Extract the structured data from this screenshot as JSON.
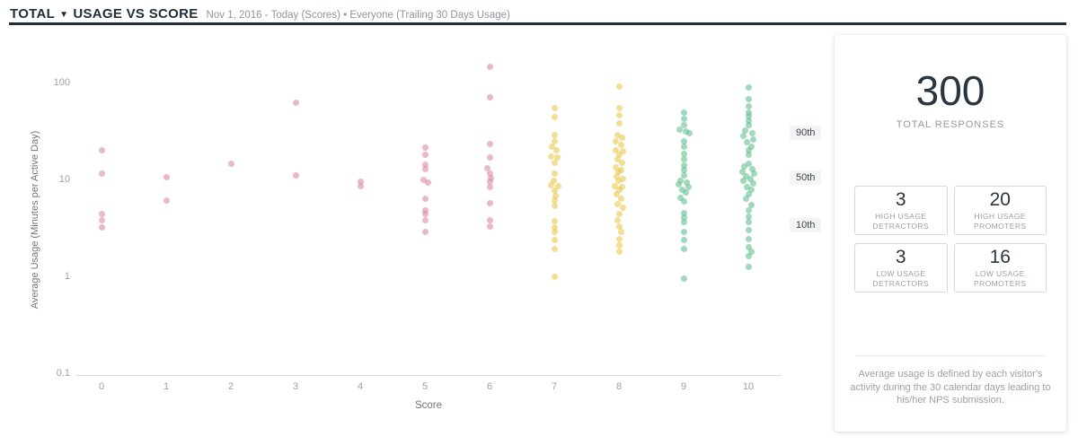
{
  "header": {
    "scope_label": "TOTAL",
    "title": "USAGE VS SCORE",
    "subtitle": "Nov 1, 2016 - Today (Scores) • Everyone (Trailing 30 Days Usage)"
  },
  "chart_data": {
    "type": "scatter",
    "title": "Usage vs Score",
    "xlabel": "Score",
    "ylabel": "Average Usage (Minutes per Active Day)",
    "x_ticks": [
      0,
      1,
      2,
      3,
      4,
      5,
      6,
      7,
      8,
      9,
      10
    ],
    "y_ticks": [
      100,
      10,
      1,
      0.1
    ],
    "y_scale": "log",
    "ylim": [
      0.1,
      200
    ],
    "grid": false,
    "colors": {
      "detractor": "#DB7E9F",
      "passive": "#E8C33C",
      "promoter": "#54BA87"
    },
    "groups": {
      "detractor_scores": [
        0,
        1,
        2,
        3,
        4,
        5,
        6
      ],
      "passive_scores": [
        7,
        8
      ],
      "promoter_scores": [
        9,
        10
      ]
    },
    "percentiles": [
      {
        "label": "90th",
        "value": 30.5
      },
      {
        "label": "50th",
        "value": 10.4
      },
      {
        "label": "10th",
        "value": 3.4
      }
    ],
    "points": [
      [
        0,
        20,
        0
      ],
      [
        0,
        11.5,
        0
      ],
      [
        0,
        4.4,
        0
      ],
      [
        0,
        3.8,
        0
      ],
      [
        0,
        3.2,
        0
      ],
      [
        1,
        10.5,
        0
      ],
      [
        1,
        6.1,
        0
      ],
      [
        2,
        14.5,
        0
      ],
      [
        3,
        62,
        0
      ],
      [
        3,
        11,
        0
      ],
      [
        4,
        9.4,
        0
      ],
      [
        4,
        8.6,
        0
      ],
      [
        5,
        21.5,
        0
      ],
      [
        5,
        17.8,
        0
      ],
      [
        5,
        14.3,
        0
      ],
      [
        5,
        12.9,
        0
      ],
      [
        5,
        9.8,
        -2
      ],
      [
        5,
        9.2,
        3
      ],
      [
        5,
        6.3,
        0
      ],
      [
        5,
        4.8,
        0
      ],
      [
        5,
        4.4,
        0
      ],
      [
        5,
        3.8,
        0
      ],
      [
        5,
        2.9,
        0
      ],
      [
        6,
        145,
        0
      ],
      [
        6,
        70,
        0
      ],
      [
        6,
        23.4,
        0
      ],
      [
        6,
        16.7,
        0
      ],
      [
        6,
        13,
        -3
      ],
      [
        6,
        11.6,
        0
      ],
      [
        6,
        10.4,
        1
      ],
      [
        6,
        9.4,
        0
      ],
      [
        6,
        8.3,
        0
      ],
      [
        6,
        5.7,
        0
      ],
      [
        6,
        3.8,
        0
      ],
      [
        6,
        3.3,
        0
      ],
      [
        7,
        55,
        0
      ],
      [
        7,
        44,
        0
      ],
      [
        7,
        29,
        0
      ],
      [
        7,
        24.5,
        0
      ],
      [
        7,
        22,
        -3
      ],
      [
        7,
        19.8,
        2
      ],
      [
        7,
        17.3,
        -4
      ],
      [
        7,
        17,
        3
      ],
      [
        7,
        14.7,
        0
      ],
      [
        7,
        11.4,
        0
      ],
      [
        7,
        9.6,
        -1
      ],
      [
        7,
        8.7,
        -4
      ],
      [
        7,
        8.5,
        4
      ],
      [
        7,
        7.6,
        0
      ],
      [
        7,
        6.8,
        1
      ],
      [
        7,
        6.1,
        0
      ],
      [
        7,
        5.3,
        0
      ],
      [
        7,
        3.7,
        0
      ],
      [
        7,
        3.2,
        0
      ],
      [
        7,
        2.9,
        0
      ],
      [
        7,
        2.35,
        0
      ],
      [
        7,
        1.9,
        0
      ],
      [
        7,
        1.0,
        0
      ],
      [
        8,
        90,
        0
      ],
      [
        8,
        55,
        0
      ],
      [
        8,
        46,
        0
      ],
      [
        8,
        38,
        0
      ],
      [
        8,
        29,
        -2
      ],
      [
        8,
        27,
        3
      ],
      [
        8,
        25,
        -4
      ],
      [
        8,
        22.5,
        2
      ],
      [
        8,
        20,
        -4
      ],
      [
        8,
        19.5,
        4
      ],
      [
        8,
        18,
        0
      ],
      [
        8,
        16.3,
        -2
      ],
      [
        8,
        14.7,
        3
      ],
      [
        8,
        13.2,
        -4
      ],
      [
        8,
        12.5,
        2
      ],
      [
        8,
        11.9,
        -1
      ],
      [
        8,
        10.7,
        -3
      ],
      [
        8,
        10.2,
        4
      ],
      [
        8,
        9.6,
        -1
      ],
      [
        8,
        8.6,
        -5
      ],
      [
        8,
        8.4,
        3
      ],
      [
        8,
        7.8,
        0
      ],
      [
        8,
        7.0,
        -3
      ],
      [
        8,
        6.3,
        2
      ],
      [
        8,
        5.6,
        -2
      ],
      [
        8,
        5.1,
        4
      ],
      [
        8,
        4.4,
        0
      ],
      [
        8,
        3.8,
        -2
      ],
      [
        8,
        3.3,
        0
      ],
      [
        8,
        2.9,
        2
      ],
      [
        8,
        2.4,
        0
      ],
      [
        8,
        2.1,
        0
      ],
      [
        8,
        1.8,
        0
      ],
      [
        9,
        49,
        0
      ],
      [
        9,
        42,
        0
      ],
      [
        9,
        36,
        0
      ],
      [
        9,
        33,
        -5
      ],
      [
        9,
        31,
        2
      ],
      [
        9,
        30,
        6
      ],
      [
        9,
        24.5,
        0
      ],
      [
        9,
        22,
        0
      ],
      [
        9,
        18.2,
        0
      ],
      [
        9,
        16,
        0
      ],
      [
        9,
        13.8,
        0
      ],
      [
        9,
        12.4,
        0
      ],
      [
        9,
        11.1,
        0
      ],
      [
        9,
        9.6,
        -4
      ],
      [
        9,
        9.3,
        3
      ],
      [
        9,
        8.8,
        -6
      ],
      [
        9,
        8.4,
        5
      ],
      [
        9,
        7.9,
        -2
      ],
      [
        9,
        7.3,
        2
      ],
      [
        9,
        6.5,
        -4
      ],
      [
        9,
        5.9,
        0
      ],
      [
        9,
        4.5,
        0
      ],
      [
        9,
        4.0,
        0
      ],
      [
        9,
        3.6,
        0
      ],
      [
        9,
        2.9,
        0
      ],
      [
        9,
        2.35,
        0
      ],
      [
        9,
        1.9,
        0
      ],
      [
        9,
        0.95,
        0
      ],
      [
        10,
        88,
        0
      ],
      [
        10,
        68,
        0
      ],
      [
        10,
        57,
        0
      ],
      [
        10,
        49,
        0
      ],
      [
        10,
        45,
        0
      ],
      [
        10,
        40,
        0
      ],
      [
        10,
        36,
        0
      ],
      [
        10,
        32,
        -4
      ],
      [
        10,
        30,
        4
      ],
      [
        10,
        28,
        -6
      ],
      [
        10,
        26,
        5
      ],
      [
        10,
        24,
        -2
      ],
      [
        10,
        22,
        3
      ],
      [
        10,
        20,
        0
      ],
      [
        10,
        17.8,
        0
      ],
      [
        10,
        14.4,
        0
      ],
      [
        10,
        13.5,
        -5
      ],
      [
        10,
        12.8,
        4
      ],
      [
        10,
        12,
        -7
      ],
      [
        10,
        11.4,
        6
      ],
      [
        10,
        10.8,
        -3
      ],
      [
        10,
        10.2,
        2
      ],
      [
        10,
        9.6,
        -6
      ],
      [
        10,
        9.0,
        5
      ],
      [
        10,
        8.4,
        -2
      ],
      [
        10,
        7.8,
        3
      ],
      [
        10,
        7.0,
        0
      ],
      [
        10,
        6.3,
        -3
      ],
      [
        10,
        5.5,
        3
      ],
      [
        10,
        4.8,
        0
      ],
      [
        10,
        4.1,
        0
      ],
      [
        10,
        3.6,
        0
      ],
      [
        10,
        3.0,
        0
      ],
      [
        10,
        2.4,
        0
      ],
      [
        10,
        2.0,
        0
      ],
      [
        10,
        1.8,
        3
      ],
      [
        10,
        1.6,
        0
      ],
      [
        10,
        1.25,
        0
      ]
    ]
  },
  "panel": {
    "total": "300",
    "total_label": "TOTAL RESPONSES",
    "stats": [
      {
        "value": "3",
        "lines": [
          "HIGH USAGE",
          "DETRACTORS"
        ]
      },
      {
        "value": "20",
        "lines": [
          "HIGH USAGE",
          "PROMOTERS"
        ]
      },
      {
        "value": "3",
        "lines": [
          "LOW USAGE",
          "DETRACTORS"
        ]
      },
      {
        "value": "16",
        "lines": [
          "LOW USAGE",
          "PROMOTERS"
        ]
      }
    ],
    "footnote": "Average usage is defined by each visitor's activity during the 30 calendar days leading to his/her NPS submission."
  }
}
